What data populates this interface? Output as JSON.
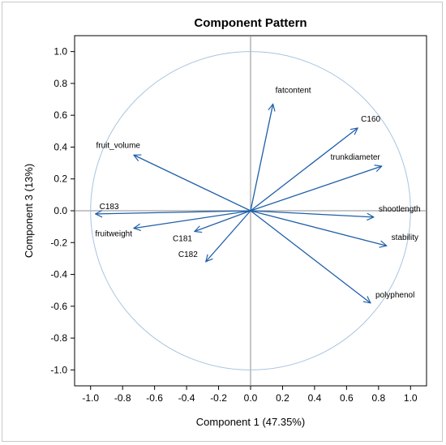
{
  "chart_data": {
    "type": "scatter",
    "title": "Component Pattern",
    "xlabel": "Component 1 (47.35%)",
    "ylabel": "Component 3 (13%)",
    "xlim": [
      -1.1,
      1.1
    ],
    "ylim": [
      -1.1,
      1.1
    ],
    "xticks": [
      "-1.0",
      "-0.8",
      "-0.6",
      "-0.4",
      "-0.2",
      "0.0",
      "0.2",
      "0.4",
      "0.6",
      "0.8",
      "1.0"
    ],
    "yticks": [
      "1.0",
      "0.8",
      "0.6",
      "0.4",
      "0.2",
      "0.0",
      "-0.2",
      "-0.4",
      "-0.6",
      "-0.8",
      "-1.0"
    ],
    "unit_circle": true,
    "reference_lines": [
      0,
      0
    ],
    "colors": {
      "vector": "#1f5fa8",
      "circle": "#a8c4e0",
      "refline": "#8c8c8c"
    },
    "vectors": [
      {
        "name": "fatcontent",
        "x": 0.14,
        "y": 0.67,
        "label_side": "right"
      },
      {
        "name": "C160",
        "x": 0.67,
        "y": 0.52,
        "label_side": "right"
      },
      {
        "name": "trunkdiameter",
        "x": 0.82,
        "y": 0.28,
        "label_side": "above-left"
      },
      {
        "name": "fruit_volume",
        "x": -0.73,
        "y": 0.35,
        "label_side": "above-left"
      },
      {
        "name": "C183",
        "x": -0.97,
        "y": -0.02,
        "label_side": "above-right"
      },
      {
        "name": "shootlength",
        "x": 0.77,
        "y": -0.04,
        "label_side": "above-right"
      },
      {
        "name": "fruitweight",
        "x": -0.73,
        "y": -0.11,
        "label_side": "below-left"
      },
      {
        "name": "C181",
        "x": -0.35,
        "y": -0.13,
        "label_side": "below-left"
      },
      {
        "name": "stability",
        "x": 0.85,
        "y": -0.22,
        "label_side": "above-right"
      },
      {
        "name": "C182",
        "x": -0.28,
        "y": -0.32,
        "label_side": "left"
      },
      {
        "name": "polyphenol",
        "x": 0.75,
        "y": -0.58,
        "label_side": "above-right"
      }
    ]
  }
}
